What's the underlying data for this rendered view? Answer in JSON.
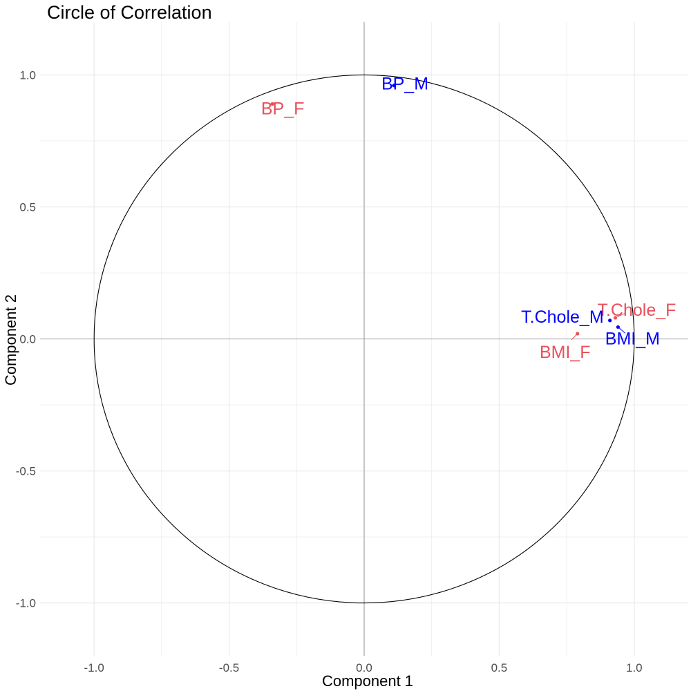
{
  "chart_data": {
    "type": "scatter",
    "title": "Circle of Correlation",
    "xlabel": "Component 1",
    "ylabel": "Component 2",
    "xlim": [
      -1.2,
      1.2
    ],
    "ylim": [
      -1.2,
      1.2
    ],
    "x_ticks": [
      -1.0,
      -0.5,
      0.0,
      0.5,
      1.0
    ],
    "x_tick_labels": [
      "-1.0",
      "-0.5",
      "0.0",
      "0.5",
      "1.0"
    ],
    "y_ticks": [
      -1.0,
      -0.5,
      0.0,
      0.5,
      1.0
    ],
    "y_tick_labels": [
      "-1.0",
      "-0.5",
      "0.0",
      "0.5",
      "1.0"
    ],
    "grid": true,
    "reference_circle_radius": 1.0,
    "colors": {
      "group_F": "#e8505b",
      "group_M": "#0000ff",
      "circle": "#000000",
      "zero_lines": "#9e9e9e",
      "grid": "#ebebeb"
    },
    "points": [
      {
        "label": "BP_F",
        "x": -0.34,
        "y": 0.89,
        "group": "F"
      },
      {
        "label": "BP_M",
        "x": 0.11,
        "y": 0.96,
        "group": "M"
      },
      {
        "label": "T.Chole_F",
        "x": 0.93,
        "y": 0.08,
        "group": "F"
      },
      {
        "label": "T.Chole_M",
        "x": 0.91,
        "y": 0.07,
        "group": "M"
      },
      {
        "label": "BMI_M",
        "x": 0.94,
        "y": 0.045,
        "group": "M"
      },
      {
        "label": "BMI_F",
        "x": 0.79,
        "y": 0.02,
        "group": "F"
      }
    ]
  }
}
